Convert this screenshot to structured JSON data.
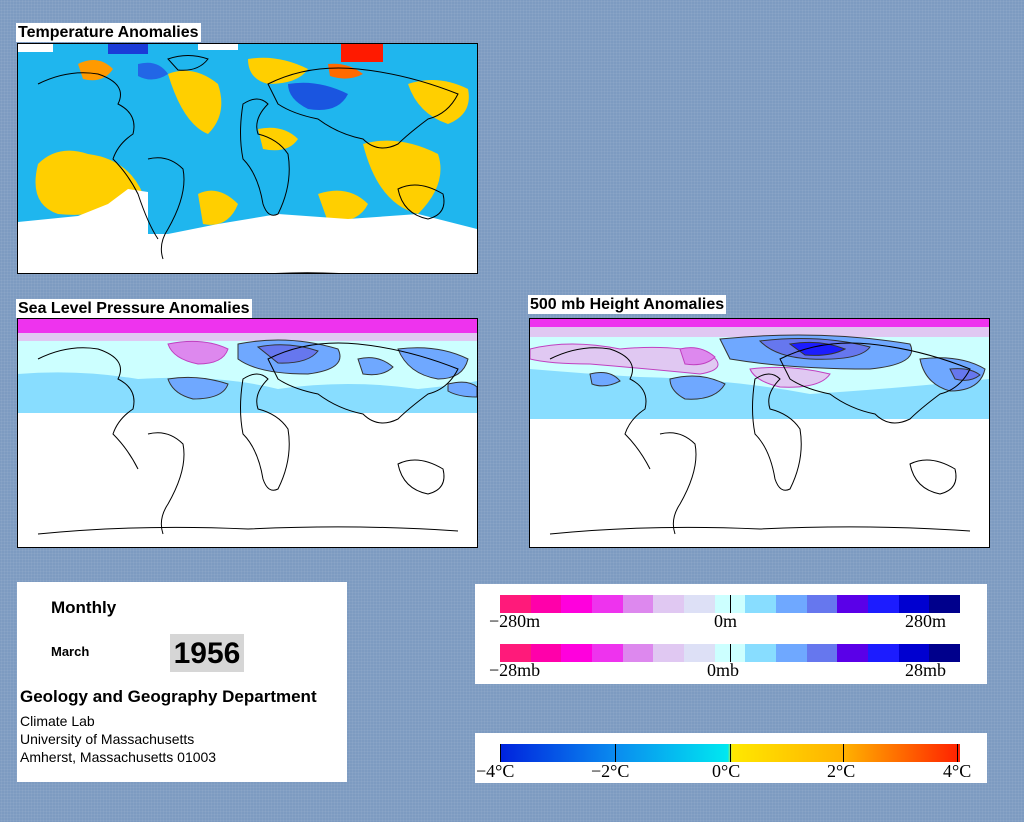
{
  "panels": {
    "temperature": {
      "title": "Temperature Anomalies"
    },
    "slp": {
      "title": "Sea Level Pressure Anomalies"
    },
    "height": {
      "title": "500 mb Height Anomalies"
    }
  },
  "info": {
    "frequency": "Monthly",
    "month": "March",
    "year": "1956",
    "department": "Geology and Geography Department",
    "address": [
      "Climate Lab",
      "University of Massachusetts",
      "Amherst, Massachusetts 01003"
    ]
  },
  "legends": {
    "height": {
      "min": "−280m",
      "mid": "0m",
      "max": "280m"
    },
    "pressure": {
      "min": "−28mb",
      "mid": "0mb",
      "max": "28mb"
    },
    "temperature": {
      "labels": [
        "−4°C",
        "−2°C",
        "0°C",
        "2°C",
        "4°C"
      ]
    }
  },
  "colors": {
    "background": "#7d9bc1",
    "anomaly_scale": [
      "#ff1a7a",
      "#ff00aa",
      "#ff00dd",
      "#ee33ee",
      "#dd88ee",
      "#e0c8f2",
      "#dde0f6",
      "#ccffff",
      "#88ddff",
      "#6fa8ff",
      "#6677ee",
      "#5a00e8",
      "#1c1cff",
      "#0000d0",
      "#00008c"
    ],
    "temperature_scale": [
      "#0022dd",
      "#0a8bef",
      "#00e8f0",
      "#ffe800",
      "#ffb000",
      "#ff2000"
    ]
  }
}
